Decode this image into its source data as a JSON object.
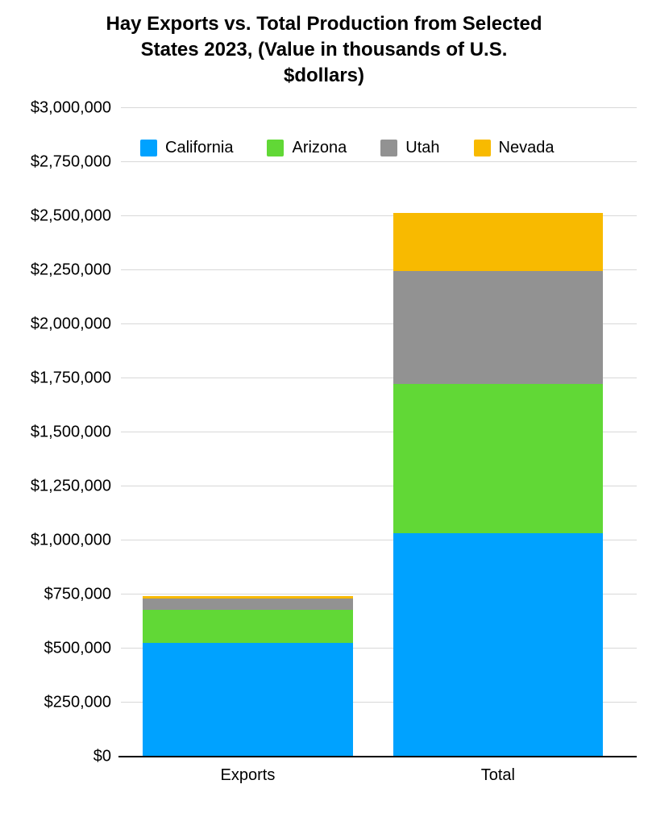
{
  "chart_data": {
    "type": "bar",
    "subtype": "stacked",
    "title": "Hay Exports vs. Total Production from Selected States 2023, (Value in thousands of U.S. $dollars)",
    "title_lines": [
      "Hay Exports vs. Total Production from Selected",
      "States 2023, (Value in thousands of U.S.",
      "$dollars)"
    ],
    "categories": [
      "Exports",
      "Total"
    ],
    "series": [
      {
        "name": "California",
        "color": "#00A2FF",
        "values": [
          525000,
          1035000
        ]
      },
      {
        "name": "Arizona",
        "color": "#61D836",
        "values": [
          155000,
          690000
        ]
      },
      {
        "name": "Utah",
        "color": "#929292",
        "values": [
          52000,
          520000
        ]
      },
      {
        "name": "Nevada",
        "color": "#F8BA00",
        "values": [
          12000,
          270000
        ]
      }
    ],
    "xlabel": "",
    "ylabel": "",
    "ylim": [
      0,
      3000000
    ],
    "grid": true,
    "legend_position": "top-inside",
    "ticks": [
      {
        "value": 0,
        "label": "$0"
      },
      {
        "value": 250000,
        "label": "$250,000"
      },
      {
        "value": 500000,
        "label": "$500,000"
      },
      {
        "value": 750000,
        "label": "$750,000"
      },
      {
        "value": 1000000,
        "label": "$1,000,000"
      },
      {
        "value": 1250000,
        "label": "$1,250,000"
      },
      {
        "value": 1500000,
        "label": "$1,500,000"
      },
      {
        "value": 1750000,
        "label": "$1,750,000"
      },
      {
        "value": 2000000,
        "label": "$2,000,000"
      },
      {
        "value": 2250000,
        "label": "$2,250,000"
      },
      {
        "value": 2500000,
        "label": "$2,500,000"
      },
      {
        "value": 2750000,
        "label": "$2,750,000"
      },
      {
        "value": 3000000,
        "label": "$3,000,000"
      }
    ],
    "colors": {
      "gridline": "#d8d8d8",
      "axis": "#000000",
      "background": "#ffffff"
    }
  }
}
